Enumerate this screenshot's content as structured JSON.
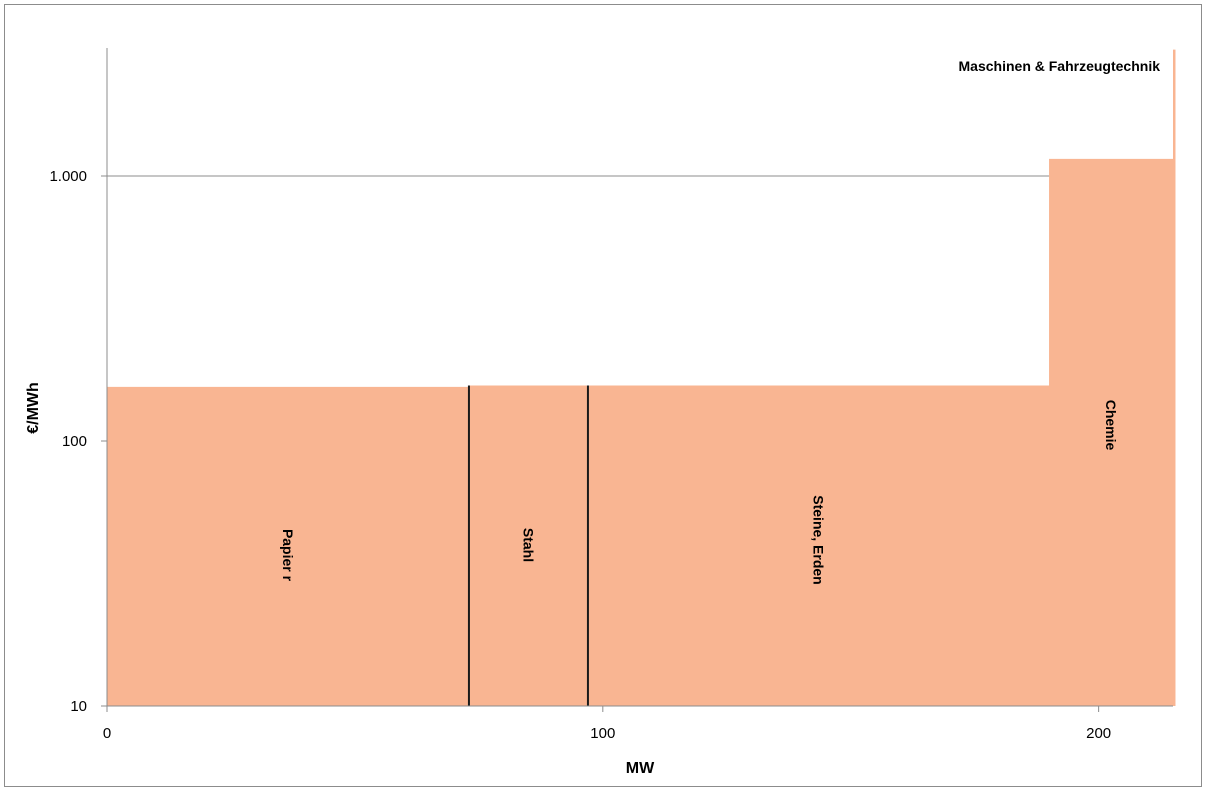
{
  "chart_data": {
    "type": "area",
    "title": "",
    "xlabel": "MW",
    "ylabel": "€/MWh",
    "x_ticks": [
      "0",
      "100",
      "200"
    ],
    "y_ticks": [
      "10",
      "100",
      "1.000"
    ],
    "xlim": [
      0,
      215
    ],
    "ylim": [
      10,
      3000
    ],
    "y_scale": "log",
    "grid": "horizontal",
    "fill_color": "#f9b592",
    "segments": [
      {
        "name": "Papier r",
        "x_start": 0,
        "x_end": 73,
        "value": 160
      },
      {
        "name": "Stahl",
        "x_start": 73,
        "x_end": 97,
        "value": 162
      },
      {
        "name": "Steine, Erden",
        "x_start": 97,
        "x_end": 190,
        "value": 162
      },
      {
        "name": "Chemie",
        "x_start": 190,
        "x_end": 215,
        "value": 1160
      },
      {
        "name": "Maschinen & Fahrzeugtechnik",
        "x_start": 215,
        "x_end": 215.5,
        "value": 3000
      }
    ],
    "dividers": [
      73,
      97
    ]
  }
}
